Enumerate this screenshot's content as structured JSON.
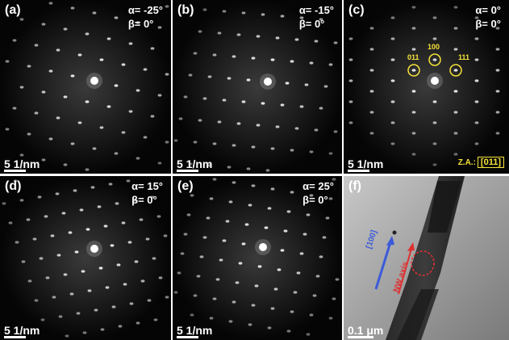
{
  "panels": [
    {
      "label": "(a)",
      "alpha": "α= -25°",
      "beta": "β= 0°",
      "scale": "5 1/nm"
    },
    {
      "label": "(b)",
      "alpha": "α= -15°",
      "beta": "β= 0°",
      "scale": "5 1/nm"
    },
    {
      "label": "(c)",
      "alpha": "α= 0°",
      "beta": "β= 0°",
      "scale": "5 1/nm"
    },
    {
      "label": "(d)",
      "alpha": "α= 15°",
      "beta": "β= 0°",
      "scale": "5 1/nm"
    },
    {
      "label": "(e)",
      "alpha": "α= 25°",
      "beta": "β= 0°",
      "scale": "5 1/nm"
    },
    {
      "label": "(f)",
      "scale": "0.1 μm"
    }
  ],
  "panel_c": {
    "spot_labels": [
      "011",
      "100",
      "111"
    ],
    "zone_axis_label": "Z.A.:",
    "zone_axis_value": "[011]"
  },
  "panel_f": {
    "direction_label": "[100]",
    "axis_label": "NW axis"
  },
  "colors": {
    "annotation_yellow": "#f5e33a",
    "direction_blue": "#3b5bd9",
    "axis_red": "#e03030"
  }
}
